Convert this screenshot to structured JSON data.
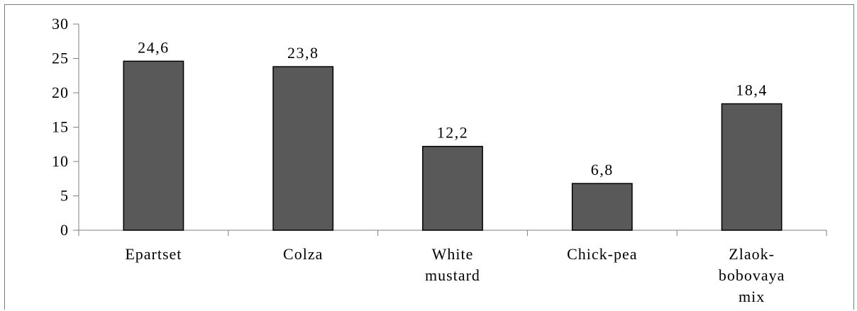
{
  "chart_data": {
    "type": "bar",
    "title": "",
    "xlabel": "",
    "ylabel": "",
    "categories": [
      [
        "Epartset"
      ],
      [
        "Colza"
      ],
      [
        "White",
        "mustard"
      ],
      [
        "Chick-pea"
      ],
      [
        "Zlaok-",
        "bobovaya",
        "mix"
      ]
    ],
    "values": [
      24.6,
      23.8,
      12.2,
      6.8,
      18.4
    ],
    "data_labels": [
      "24,6",
      "23,8",
      "12,2",
      "6,8",
      "18,4"
    ],
    "yticks": [
      "0",
      "5",
      "10",
      "15",
      "20",
      "25",
      "30"
    ],
    "ylim": [
      0,
      30
    ],
    "grid": false,
    "legend": "none",
    "colors": {
      "bar_fill": "#595959",
      "bar_stroke": "#000000",
      "axis": "#7f7f7f"
    }
  }
}
